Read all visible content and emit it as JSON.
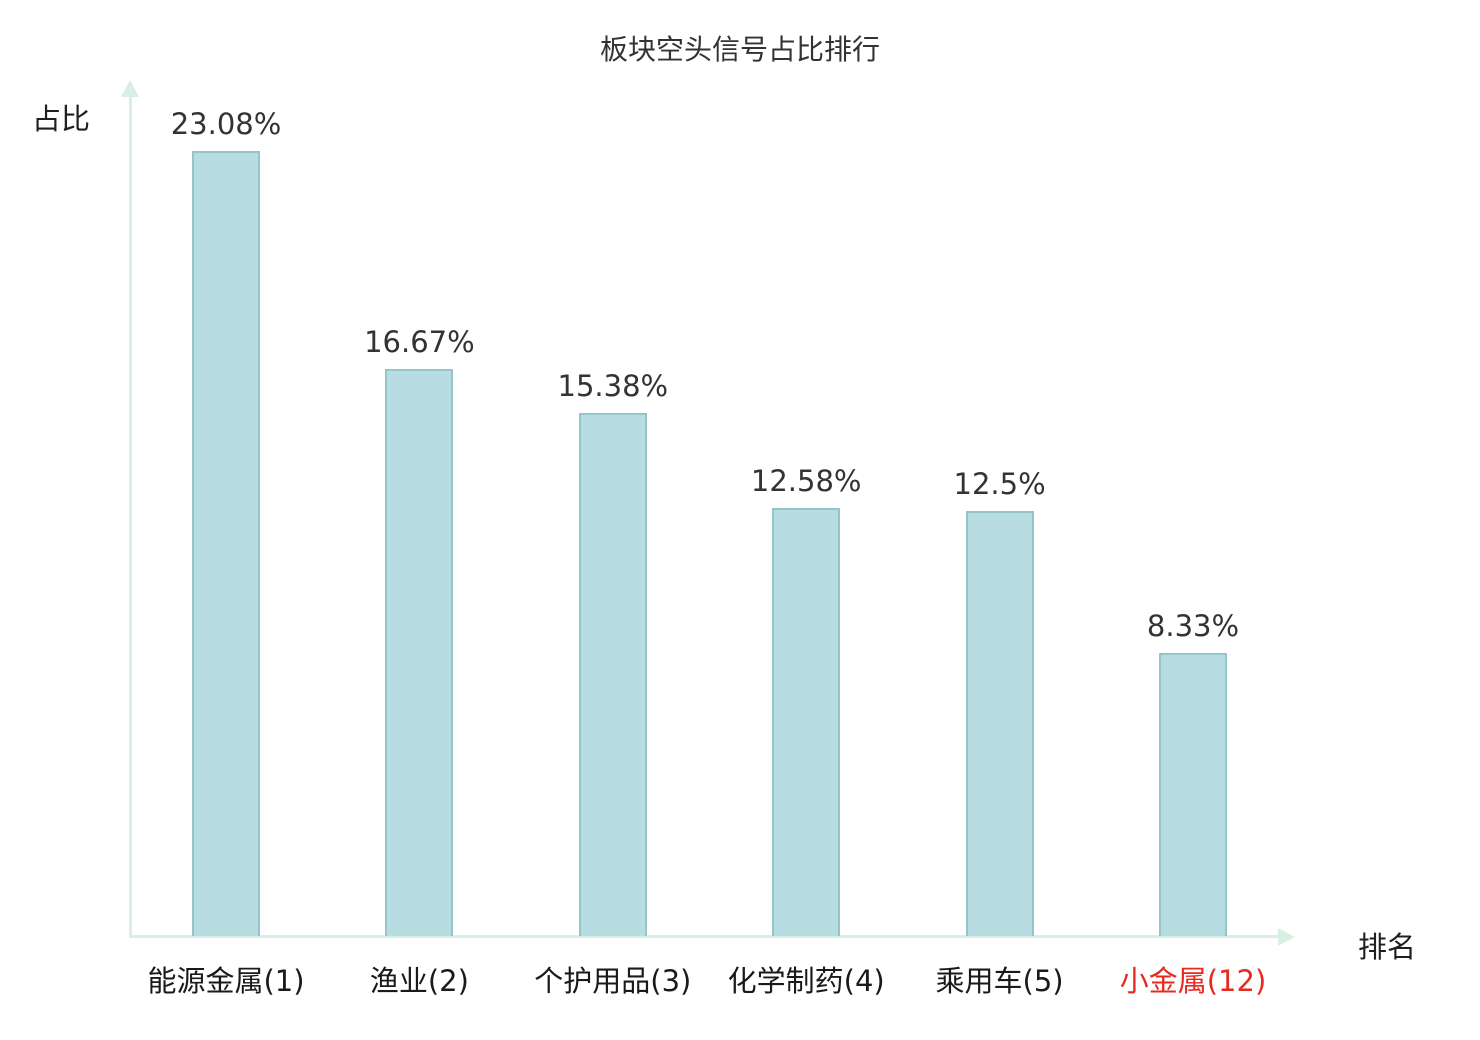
{
  "chart_data": {
    "type": "bar",
    "title": "板块空头信号占比排行",
    "xlabel": "排名",
    "ylabel": "占比",
    "categories": [
      "能源金属(1)",
      "渔业(2)",
      "个护用品(3)",
      "化学制药(4)",
      "乘用车(5)",
      "小金属(12)"
    ],
    "values": [
      23.08,
      16.67,
      15.38,
      12.58,
      12.5,
      8.33
    ],
    "value_labels": [
      "23.08%",
      "16.67%",
      "15.38%",
      "12.58%",
      "12.5%",
      "8.33%"
    ],
    "highlight_index": 5,
    "ylim": [
      0,
      25
    ],
    "grid": false,
    "legend": "none",
    "colors": {
      "bar_fill": "#b7dde2",
      "bar_border": "#93c5cb",
      "axis": "#d9efe4",
      "value_label": "#333333",
      "tick_label": "#1a1a1a",
      "highlight_label": "#e8291f"
    }
  }
}
